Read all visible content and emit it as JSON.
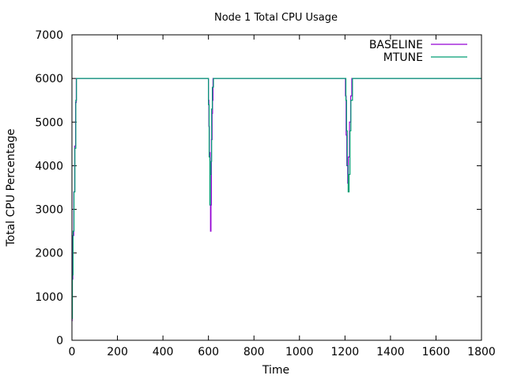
{
  "chart_data": {
    "type": "line",
    "title": "Node 1 Total CPU Usage",
    "xlabel": "Time",
    "ylabel": "Total CPU Percentage",
    "xlim": [
      0,
      1800
    ],
    "ylim": [
      0,
      7000
    ],
    "xticks": [
      0,
      200,
      400,
      600,
      800,
      1000,
      1200,
      1400,
      1600,
      1800
    ],
    "yticks": [
      0,
      1000,
      2000,
      3000,
      4000,
      5000,
      6000,
      7000
    ],
    "grid": false,
    "legend_position": "top-right",
    "series": [
      {
        "name": "BASELINE",
        "color": "#9400d3",
        "points": [
          [
            0,
            450
          ],
          [
            1,
            1400
          ],
          [
            4,
            2400
          ],
          [
            8,
            3400
          ],
          [
            12,
            4450
          ],
          [
            16,
            5450
          ],
          [
            19,
            6000
          ],
          [
            598,
            6000
          ],
          [
            600,
            5500
          ],
          [
            602,
            4900
          ],
          [
            604,
            4300
          ],
          [
            607,
            3100
          ],
          [
            609,
            2500
          ],
          [
            611,
            3100
          ],
          [
            613,
            4600
          ],
          [
            616,
            5200
          ],
          [
            618,
            5500
          ],
          [
            620,
            6000
          ],
          [
            1200,
            6000
          ],
          [
            1202,
            5600
          ],
          [
            1205,
            4700
          ],
          [
            1208,
            4000
          ],
          [
            1212,
            3600
          ],
          [
            1215,
            4200
          ],
          [
            1220,
            5000
          ],
          [
            1225,
            5600
          ],
          [
            1230,
            6000
          ],
          [
            1800,
            6000
          ]
        ]
      },
      {
        "name": "MTUNE",
        "color": "#009e73",
        "points": [
          [
            0,
            500
          ],
          [
            2,
            1500
          ],
          [
            5,
            2500
          ],
          [
            9,
            3400
          ],
          [
            13,
            4400
          ],
          [
            17,
            5500
          ],
          [
            20,
            6000
          ],
          [
            598,
            6000
          ],
          [
            600,
            5400
          ],
          [
            603,
            4200
          ],
          [
            606,
            3100
          ],
          [
            608,
            3800
          ],
          [
            611,
            4100
          ],
          [
            614,
            5300
          ],
          [
            617,
            5800
          ],
          [
            622,
            6000
          ],
          [
            1202,
            6000
          ],
          [
            1204,
            5500
          ],
          [
            1207,
            4800
          ],
          [
            1210,
            4000
          ],
          [
            1214,
            3400
          ],
          [
            1218,
            3800
          ],
          [
            1222,
            4800
          ],
          [
            1226,
            5500
          ],
          [
            1233,
            6000
          ],
          [
            1800,
            6000
          ]
        ]
      }
    ]
  }
}
